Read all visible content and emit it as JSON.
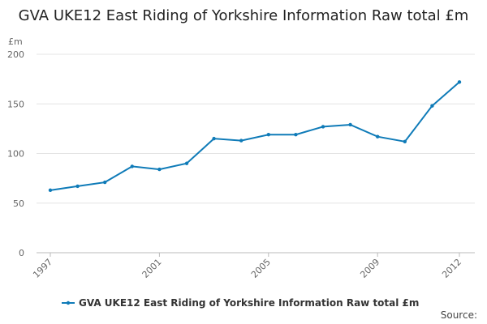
{
  "chart_data": {
    "type": "line",
    "title": "GVA UKE12 East Riding of Yorkshire Information Raw total £m",
    "y_label": "£m",
    "x": [
      1997,
      1998,
      1999,
      2000,
      2001,
      2002,
      2003,
      2004,
      2005,
      2006,
      2007,
      2008,
      2009,
      2010,
      2011,
      2012
    ],
    "series": [
      {
        "name": "GVA UKE12 East Riding of Yorkshire Information Raw total £m",
        "color": "#0f7bb8",
        "values": [
          63,
          67,
          71,
          87,
          84,
          90,
          115,
          113,
          119,
          119,
          127,
          129,
          117,
          112,
          148,
          172
        ]
      }
    ],
    "xlim": [
      1997,
      2012
    ],
    "xticks": [
      1997,
      2001,
      2005,
      2009,
      2012
    ],
    "ylim": [
      0,
      200
    ],
    "yticks": [
      0,
      50,
      100,
      150,
      200
    ],
    "grid": true,
    "legend": "bottom",
    "source": "Source:"
  }
}
